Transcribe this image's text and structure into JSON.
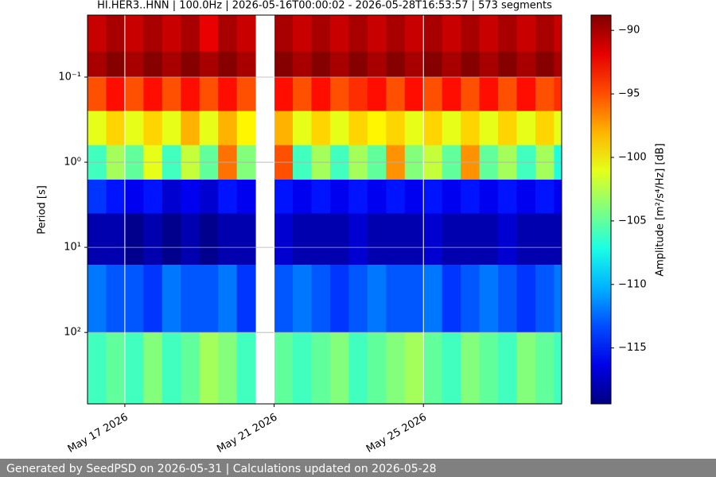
{
  "chart_data": {
    "type": "heatmap",
    "title": "HI.HER3..HNN | 100.0Hz | 2026-05-16T00:00:02 - 2026-05-28T16:53:57 | 573 segments",
    "y_label": "Period [s]",
    "colorbar_label": "Amplitude [m²/s⁴/Hz] [dB]",
    "cmap": "jet",
    "y_log": true,
    "y_inverted": true,
    "grid": true,
    "xlim": [
      "2026-05-16T00:00:02",
      "2026-05-28T16:53:57"
    ],
    "xticks": [
      {
        "value": "2026-05-17",
        "label": "May 17 2026"
      },
      {
        "value": "2026-05-21",
        "label": "May 21 2026"
      },
      {
        "value": "2026-05-25",
        "label": "May 25 2026"
      }
    ],
    "ylim": [
      0.0187,
      690
    ],
    "yticks": [
      {
        "value": 0.1,
        "label": "10⁻¹"
      },
      {
        "value": 1,
        "label": "10⁰"
      },
      {
        "value": 10,
        "label": "10¹"
      },
      {
        "value": 100,
        "label": "10²"
      }
    ],
    "clim": [
      -119.4,
      -88.8
    ],
    "cticks": [
      {
        "value": -90,
        "label": "−90"
      },
      {
        "value": -95,
        "label": "−95"
      },
      {
        "value": -100,
        "label": "−100"
      },
      {
        "value": -105,
        "label": "−105"
      },
      {
        "value": -110,
        "label": "−110"
      },
      {
        "value": -115,
        "label": "−115"
      }
    ],
    "xbins": [
      "2026-05-16T00:00:02",
      "2026-05-16T12:00:00",
      "2026-05-17T00:00:00",
      "2026-05-17T12:00:00",
      "2026-05-18T00:00:00",
      "2026-05-18T12:00:00",
      "2026-05-19T00:00:00",
      "2026-05-19T12:00:00",
      "2026-05-20T00:00:00",
      "2026-05-20T12:00:00",
      "2026-05-21T00:00:00",
      "2026-05-21T12:00:00",
      "2026-05-22T00:00:00",
      "2026-05-22T12:00:00",
      "2026-05-23T00:00:00",
      "2026-05-23T12:00:00",
      "2026-05-24T00:00:00",
      "2026-05-24T12:00:00",
      "2026-05-25T00:00:00",
      "2026-05-25T12:00:00",
      "2026-05-26T00:00:00",
      "2026-05-26T12:00:00",
      "2026-05-27T00:00:00",
      "2026-05-27T12:00:00",
      "2026-05-28T00:00:00",
      "2026-05-28T12:00:00",
      "2026-05-28T16:53:57"
    ],
    "ybins": [
      0.0187,
      0.05,
      0.1,
      0.25,
      0.63,
      1.6,
      4,
      16,
      100,
      690
    ],
    "z": [
      [
        -91,
        -90,
        -91,
        -90,
        -91,
        -90,
        -92,
        -90,
        -91,
        null,
        -90,
        -91,
        -90,
        -91,
        -90,
        -91,
        -90,
        -91,
        -90,
        -91,
        -90,
        -91,
        -90,
        -91,
        -90,
        -91
      ],
      [
        -90,
        -89,
        -90,
        -89,
        -90,
        -89,
        -90,
        -89,
        -90,
        null,
        -89,
        -90,
        -89,
        -90,
        -89,
        -90,
        -89,
        -90,
        -89,
        -90,
        -89,
        -90,
        -89,
        -90,
        -89,
        -90
      ],
      [
        -95,
        -93,
        -95,
        -93,
        -95,
        -93,
        -95,
        -93,
        -95,
        null,
        -93,
        -95,
        -93,
        -95,
        -94,
        -93,
        -95,
        -93,
        -95,
        -93,
        -95,
        -93,
        -95,
        -93,
        -95,
        -94
      ],
      [
        -101,
        -99,
        -101,
        -99,
        -101,
        -98,
        -101,
        -98,
        -100,
        null,
        -98,
        -101,
        -99,
        -101,
        -99,
        -100,
        -99,
        -101,
        -99,
        -101,
        -99,
        -101,
        -99,
        -101,
        -99,
        -101
      ],
      [
        -106,
        -103,
        -105,
        -101,
        -106,
        -102,
        -105,
        -96,
        -104,
        null,
        -95,
        -106,
        -103,
        -106,
        -103,
        -105,
        -97,
        -104,
        -102,
        -105,
        -97,
        -105,
        -103,
        -106,
        -103,
        -107
      ],
      [
        -114,
        -115,
        -116,
        -115,
        -117,
        -116,
        -117,
        -115,
        -116,
        null,
        -115,
        -116,
        -115,
        -116,
        -115,
        -116,
        -115,
        -116,
        -115,
        -116,
        -115,
        -116,
        -115,
        -116,
        -115,
        -116
      ],
      [
        -118,
        -118,
        -119,
        -118,
        -119,
        -118,
        -119,
        -118,
        -118,
        null,
        -117,
        -118,
        -118,
        -118,
        -117,
        -118,
        -118,
        -118,
        -117,
        -118,
        -118,
        -118,
        -117,
        -118,
        -118,
        -118
      ],
      [
        -112,
        -113,
        -113,
        -114,
        -112,
        -113,
        -113,
        -112,
        -114,
        null,
        -113,
        -112,
        -113,
        -114,
        -113,
        -112,
        -113,
        -113,
        -112,
        -114,
        -113,
        -112,
        -113,
        -114,
        -113,
        -112
      ],
      [
        -106,
        -105,
        -106,
        -104,
        -106,
        -105,
        -103,
        -104,
        -106,
        null,
        -105,
        -106,
        -105,
        -104,
        -106,
        -105,
        -104,
        -103,
        -105,
        -106,
        -104,
        -105,
        -106,
        -104,
        -105,
        -106
      ]
    ]
  },
  "footer": "Generated by SeedPSD on 2026-05-31 | Calculations updated on 2026-05-28"
}
